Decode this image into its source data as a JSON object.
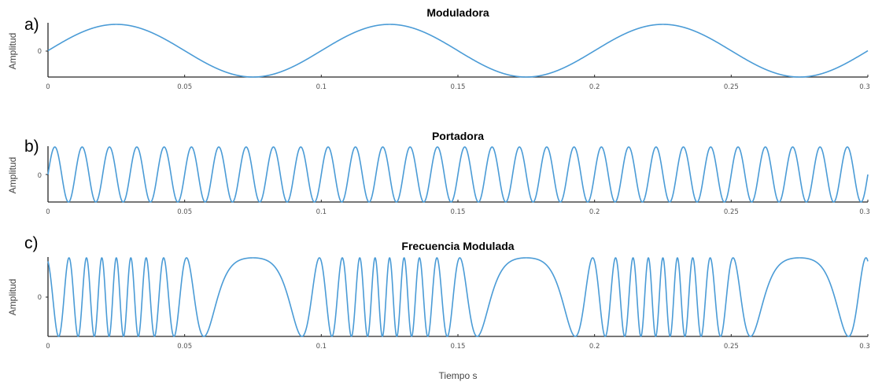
{
  "colors": {
    "series": "#4a9bd6",
    "axis": "#262626"
  },
  "x_tick_labels": [
    "0",
    "0.05",
    "0.1",
    "0.15",
    "0.2",
    "0.25",
    "0.3"
  ],
  "y_tick_label": "0",
  "xlabel": "Tiempo s",
  "chart_data": [
    {
      "type": "line",
      "panel_label": "a)",
      "title": "Moduladora",
      "ylabel": "Amplitud",
      "xlim": [
        0,
        0.3
      ],
      "ylim": [
        -1,
        1
      ],
      "grid": false,
      "series": [
        {
          "function": "sin(2*pi*10*t)",
          "frequency_hz": 10,
          "amplitude": 1
        }
      ]
    },
    {
      "type": "line",
      "panel_label": "b)",
      "title": "Portadora",
      "ylabel": "Amplitud",
      "xlim": [
        0,
        0.3
      ],
      "ylim": [
        -1,
        1
      ],
      "grid": false,
      "series": [
        {
          "function": "sin(2*pi*100*t)",
          "frequency_hz": 100,
          "amplitude": 1
        }
      ]
    },
    {
      "type": "line",
      "panel_label": "c)",
      "title": "Frecuencia Modulada",
      "ylabel": "Amplitud",
      "xlabel": "Tiempo s",
      "xlim": [
        0,
        0.3
      ],
      "ylim": [
        -1,
        1
      ],
      "grid": false,
      "series": [
        {
          "function": "-cos(2*pi*100*t - 9*cos(2*pi*10*t))",
          "carrier_hz": 100,
          "modulating_hz": 10,
          "frequency_deviation_hz": 90,
          "amplitude": 1
        }
      ]
    }
  ]
}
